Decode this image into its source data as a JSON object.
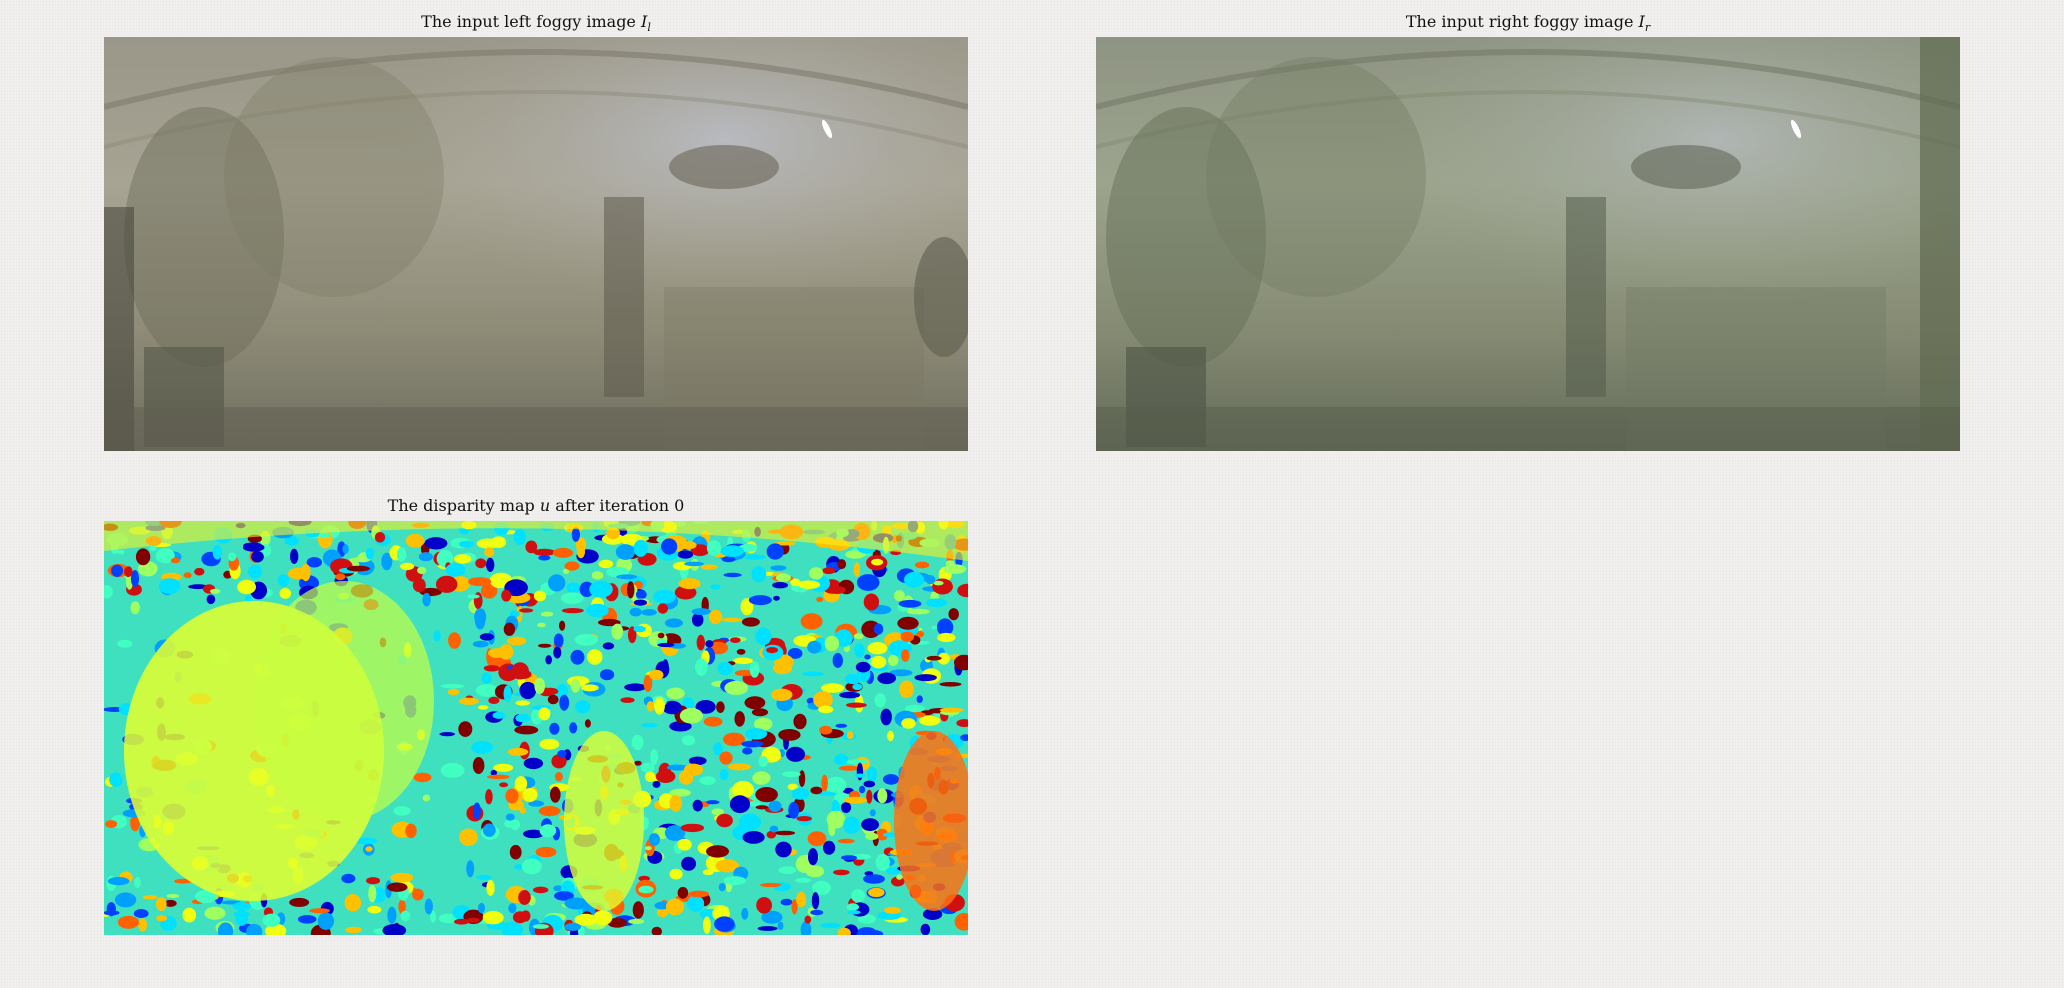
{
  "panels": [
    {
      "title_text": "The input left foggy image ",
      "title_symbol": "I",
      "title_subscript": "l",
      "image_icon": "foggy-greenhouse-photo-left"
    },
    {
      "title_text": "The input right foggy image ",
      "title_symbol": "I",
      "title_subscript": "r",
      "image_icon": "foggy-greenhouse-photo-right"
    },
    {
      "title_text": "The disparity map ",
      "title_symbol": "u",
      "title_suffix": " after iteration 0",
      "image_icon": "disparity-map-jet-colormap"
    }
  ],
  "colors": {
    "fog_left": "#a8a494",
    "fog_right": "#98a08a",
    "jet_blue": "#0000c8",
    "jet_cyan": "#00e0ff",
    "jet_yellow": "#f0ff10",
    "jet_red": "#d01010"
  }
}
